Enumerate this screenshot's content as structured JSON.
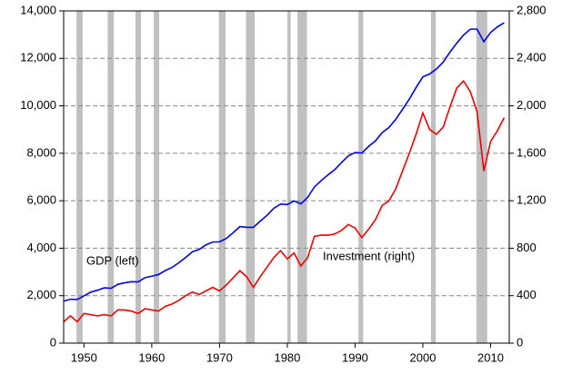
{
  "chart_data": {
    "type": "line",
    "annotations": [
      "GDP (left)",
      "Investment (right)"
    ],
    "x": [
      1947,
      1948,
      1949,
      1950,
      1951,
      1952,
      1953,
      1954,
      1955,
      1956,
      1957,
      1958,
      1959,
      1960,
      1961,
      1962,
      1963,
      1964,
      1965,
      1966,
      1967,
      1968,
      1969,
      1970,
      1971,
      1972,
      1973,
      1974,
      1975,
      1976,
      1977,
      1978,
      1979,
      1980,
      1981,
      1982,
      1983,
      1984,
      1985,
      1986,
      1987,
      1988,
      1989,
      1990,
      1991,
      1992,
      1993,
      1994,
      1995,
      1996,
      1997,
      1998,
      1999,
      2000,
      2001,
      2002,
      2003,
      2004,
      2005,
      2006,
      2007,
      2008,
      2009,
      2010,
      2011,
      2012
    ],
    "series": [
      {
        "name": "GDP",
        "color": "#0000ee",
        "axis": "y",
        "values": [
          1770,
          1850,
          1840,
          1990,
          2150,
          2230,
          2330,
          2310,
          2480,
          2540,
          2590,
          2580,
          2760,
          2820,
          2890,
          3060,
          3190,
          3390,
          3610,
          3850,
          3950,
          4140,
          4260,
          4270,
          4410,
          4650,
          4910,
          4880,
          4880,
          5140,
          5380,
          5680,
          5860,
          5840,
          5990,
          5870,
          6140,
          6580,
          6850,
          7090,
          7310,
          7610,
          7890,
          8030,
          8010,
          8290,
          8520,
          8870,
          9090,
          9430,
          9850,
          10280,
          10770,
          11220,
          11340,
          11550,
          11840,
          12260,
          12640,
          12980,
          13230,
          13230,
          12700,
          13090,
          13330,
          13500
        ]
      },
      {
        "name": "Investment",
        "color": "#ee0000",
        "axis": "y2",
        "values": [
          180,
          230,
          180,
          250,
          240,
          230,
          240,
          230,
          280,
          280,
          270,
          250,
          290,
          280,
          270,
          310,
          330,
          360,
          400,
          430,
          410,
          440,
          470,
          440,
          490,
          550,
          610,
          560,
          470,
          560,
          640,
          720,
          780,
          710,
          760,
          650,
          720,
          900,
          910,
          910,
          920,
          950,
          1000,
          970,
          890,
          960,
          1040,
          1160,
          1200,
          1300,
          1450,
          1600,
          1760,
          1940,
          1800,
          1760,
          1820,
          1990,
          2150,
          2210,
          2120,
          1950,
          1450,
          1700,
          1790,
          1900
        ]
      }
    ],
    "shaded_periods": [
      [
        1948.9,
        1949.8
      ],
      [
        1953.5,
        1954.4
      ],
      [
        1957.6,
        1958.4
      ],
      [
        1960.3,
        1961.1
      ],
      [
        1969.9,
        1970.9
      ],
      [
        1973.9,
        1975.2
      ],
      [
        1980.0,
        1980.5
      ],
      [
        1981.5,
        1982.9
      ],
      [
        1990.5,
        1991.2
      ],
      [
        2001.2,
        2001.9
      ],
      [
        2007.9,
        2009.5
      ]
    ],
    "shade_color": "#c0c0c0",
    "xlim": [
      1947,
      2012.75
    ],
    "xticks": [
      1950,
      1960,
      1970,
      1980,
      1990,
      2000,
      2010
    ],
    "ylim": [
      0,
      14000
    ],
    "yticks": [
      0,
      {
        "value": 2000,
        "label": "2,000"
      },
      {
        "value": 4000,
        "label": "4,000"
      },
      {
        "value": 6000,
        "label": "6,000"
      },
      {
        "value": 8000,
        "label": "8,000"
      },
      {
        "value": 10000,
        "label": "10,000"
      },
      {
        "value": 12000,
        "label": "12,000"
      },
      {
        "value": 14000,
        "label": "14,000"
      }
    ],
    "y2lim": [
      0,
      2800
    ],
    "y2ticks": [
      0,
      400,
      800,
      {
        "value": 1200,
        "label": "1,200"
      },
      {
        "value": 1600,
        "label": "1,600"
      },
      {
        "value": 2000,
        "label": "2,000"
      },
      {
        "value": 2400,
        "label": "2,400"
      },
      {
        "value": 2800,
        "label": "2,800"
      }
    ],
    "grid": true
  }
}
